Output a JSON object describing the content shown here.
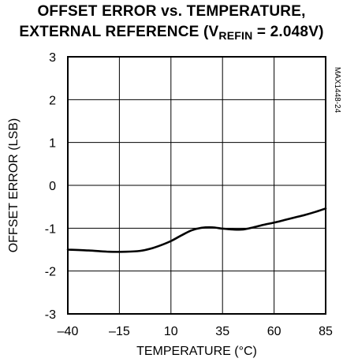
{
  "title": {
    "line1": "OFFSET ERROR vs. TEMPERATURE,",
    "line2_main": "EXTERNAL REFERENCE (V",
    "line2_sub": "REFIN",
    "line2_end": " = 2.048V)"
  },
  "figure_code": "MAX1448-24",
  "chart_data": {
    "type": "line",
    "title": "OFFSET ERROR vs. TEMPERATURE, EXTERNAL REFERENCE (VREFIN = 2.048V)",
    "xlabel": "TEMPERATURE (°C)",
    "ylabel": "OFFSET ERROR (LSB)",
    "xlim": [
      -40,
      85
    ],
    "ylim": [
      -3,
      3
    ],
    "xticks": [
      -40,
      -15,
      10,
      35,
      60,
      85
    ],
    "yticks": [
      -3,
      -2,
      -1,
      0,
      1,
      2,
      3
    ],
    "grid": true,
    "series": [
      {
        "x": [
          -40,
          -30,
          -20,
          -12,
          -5,
          0,
          5,
          10,
          15,
          20,
          25,
          30,
          35,
          40,
          45,
          50,
          55,
          60,
          65,
          70,
          75,
          80,
          85
        ],
        "y": [
          -1.5,
          -1.52,
          -1.55,
          -1.55,
          -1.53,
          -1.48,
          -1.4,
          -1.3,
          -1.17,
          -1.05,
          -0.99,
          -0.98,
          -1.01,
          -1.03,
          -1.03,
          -0.98,
          -0.92,
          -0.87,
          -0.81,
          -0.75,
          -0.69,
          -0.62,
          -0.54
        ]
      }
    ]
  }
}
